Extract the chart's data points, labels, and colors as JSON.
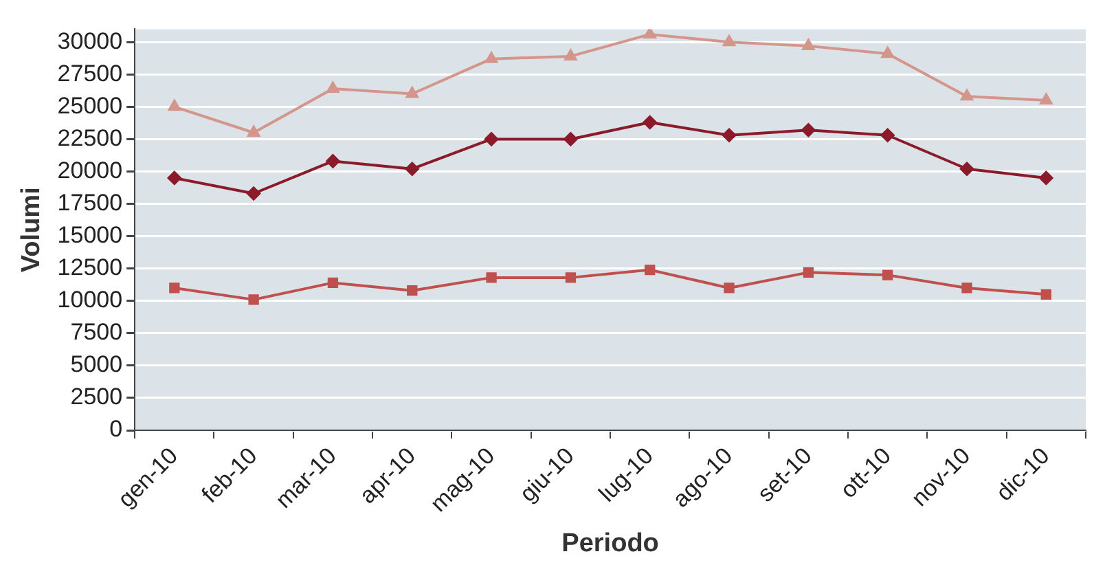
{
  "chart_data": {
    "type": "line",
    "xlabel": "Periodo",
    "ylabel": "Volumi",
    "categories": [
      "gen-10",
      "feb-10",
      "mar-10",
      "apr-10",
      "mag-10",
      "giu-10",
      "lug-10",
      "ago-10",
      "set-10",
      "ott-10",
      "nov-10",
      "dic-10"
    ],
    "series": [
      {
        "color": "#d4968a",
        "marker": "triangle",
        "values": [
          25000,
          23000,
          26400,
          26000,
          28700,
          28900,
          30600,
          30000,
          29700,
          29100,
          25800,
          25500
        ]
      },
      {
        "color": "#8b1a2b",
        "marker": "diamond",
        "values": [
          19500,
          18300,
          20800,
          20200,
          22500,
          22500,
          23800,
          22800,
          23200,
          22800,
          20200,
          19500
        ]
      },
      {
        "color": "#c0504d",
        "marker": "square",
        "values": [
          11000,
          10100,
          11400,
          10800,
          11800,
          11800,
          12400,
          11000,
          12200,
          12000,
          11000,
          10500
        ]
      }
    ],
    "ylim": [
      0,
      31000
    ],
    "yticks": [
      0,
      2500,
      5000,
      7500,
      10000,
      12500,
      15000,
      17500,
      20000,
      22500,
      25000,
      27500,
      30000
    ],
    "grid": "y",
    "legend": false
  }
}
